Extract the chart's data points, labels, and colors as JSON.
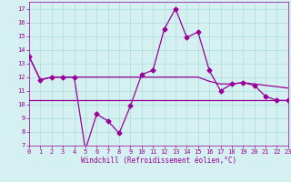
{
  "xlabel": "Windchill (Refroidissement éolien,°C)",
  "x": [
    0,
    1,
    2,
    3,
    4,
    5,
    6,
    7,
    8,
    9,
    10,
    11,
    12,
    13,
    14,
    15,
    16,
    17,
    18,
    19,
    20,
    21,
    22,
    23
  ],
  "y_main": [
    13.5,
    11.8,
    12.0,
    12.0,
    12.0,
    6.7,
    9.3,
    8.8,
    7.9,
    9.9,
    12.2,
    12.5,
    15.5,
    17.0,
    14.9,
    15.3,
    12.5,
    11.0,
    11.5,
    11.6,
    11.4,
    10.6,
    10.3,
    10.3
  ],
  "y_smooth": [
    13.5,
    11.8,
    12.0,
    12.0,
    12.0,
    12.0,
    12.0,
    12.0,
    12.0,
    12.0,
    12.0,
    12.0,
    12.0,
    12.0,
    12.0,
    12.0,
    11.7,
    11.5,
    11.5,
    11.6,
    11.5,
    11.4,
    11.3,
    11.2
  ],
  "y_flat": 10.3,
  "xlim": [
    0,
    23
  ],
  "ylim": [
    7,
    17.5
  ],
  "yticks": [
    7,
    8,
    9,
    10,
    11,
    12,
    13,
    14,
    15,
    16,
    17
  ],
  "xticks": [
    0,
    1,
    2,
    3,
    4,
    5,
    6,
    7,
    8,
    9,
    10,
    11,
    12,
    13,
    14,
    15,
    16,
    17,
    18,
    19,
    20,
    21,
    22,
    23
  ],
  "line_color": "#990099",
  "marker": "D",
  "marker_size": 2.5,
  "bg_color": "#d4f0f0",
  "grid_color": "#aadddd",
  "line_width": 0.9,
  "tick_fontsize": 5,
  "xlabel_fontsize": 5.5
}
